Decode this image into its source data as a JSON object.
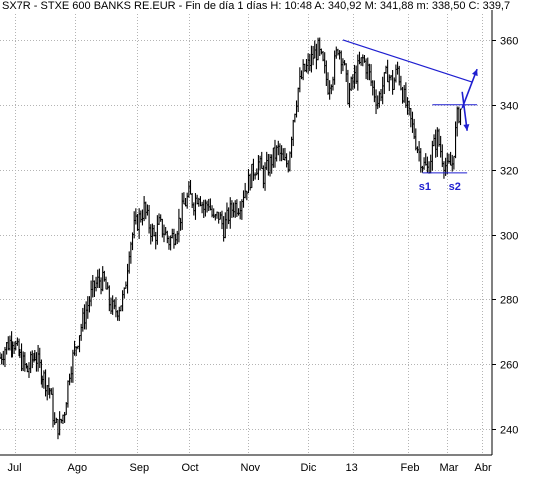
{
  "header": {
    "text": "SX7R - STXE 600 BANKS RE.EUR - Fin de día 1 días H: 10:48 A: 340,92 M: 341,88 m: 338,50 C: 339,7"
  },
  "chart_data": {
    "type": "candlestick",
    "title": "SX7R - STXE 600 BANKS RE.EUR",
    "x_tick_labels": [
      "Jul",
      "Ago",
      "Sep",
      "Oct",
      "Nov",
      "Dic",
      "13",
      "Feb",
      "Mar",
      "Abr"
    ],
    "y_ticks": [
      240,
      260,
      280,
      300,
      320,
      340,
      360
    ],
    "ylim": [
      232,
      368
    ],
    "grid": true,
    "axis_position": "right",
    "line_color": "#000000",
    "annotation_color": "#1f1fd0",
    "price_path": [
      [
        0,
        262
      ],
      [
        2,
        265
      ],
      [
        5,
        268
      ],
      [
        8,
        262
      ],
      [
        11,
        258
      ],
      [
        14,
        263
      ],
      [
        17,
        257
      ],
      [
        20,
        252
      ],
      [
        22,
        241
      ],
      [
        24,
        241
      ],
      [
        26,
        246
      ],
      [
        28,
        258
      ],
      [
        30,
        264
      ],
      [
        32,
        270
      ],
      [
        34,
        275
      ],
      [
        36,
        280
      ],
      [
        38,
        284
      ],
      [
        40,
        286
      ],
      [
        42,
        285
      ],
      [
        44,
        279
      ],
      [
        46,
        276
      ],
      [
        48,
        278
      ],
      [
        50,
        281
      ],
      [
        52,
        296
      ],
      [
        54,
        302
      ],
      [
        56,
        305
      ],
      [
        58,
        308
      ],
      [
        60,
        303
      ],
      [
        62,
        299
      ],
      [
        64,
        303
      ],
      [
        66,
        301
      ],
      [
        68,
        298
      ],
      [
        70,
        300
      ],
      [
        72,
        304
      ],
      [
        74,
        309
      ],
      [
        76,
        312
      ],
      [
        78,
        310
      ],
      [
        80,
        313
      ],
      [
        82,
        308
      ],
      [
        84,
        310
      ],
      [
        86,
        304
      ],
      [
        88,
        306
      ],
      [
        90,
        302
      ],
      [
        92,
        306
      ],
      [
        94,
        309
      ],
      [
        96,
        309
      ],
      [
        98,
        313
      ],
      [
        100,
        316
      ],
      [
        102,
        320
      ],
      [
        104,
        322
      ],
      [
        106,
        318
      ],
      [
        108,
        321
      ],
      [
        110,
        324
      ],
      [
        112,
        326
      ],
      [
        114,
        322
      ],
      [
        116,
        322
      ],
      [
        118,
        336
      ],
      [
        120,
        345
      ],
      [
        122,
        350
      ],
      [
        124,
        352
      ],
      [
        126,
        355
      ],
      [
        128,
        357
      ],
      [
        130,
        352
      ],
      [
        132,
        346
      ],
      [
        134,
        350
      ],
      [
        136,
        358
      ],
      [
        138,
        354
      ],
      [
        140,
        343
      ],
      [
        142,
        347
      ],
      [
        144,
        351
      ],
      [
        146,
        354
      ],
      [
        148,
        351
      ],
      [
        150,
        345
      ],
      [
        152,
        341
      ],
      [
        154,
        346
      ],
      [
        156,
        350
      ],
      [
        158,
        346
      ],
      [
        160,
        351
      ],
      [
        162,
        344
      ],
      [
        164,
        338
      ],
      [
        166,
        333
      ],
      [
        168,
        327
      ],
      [
        170,
        322
      ],
      [
        172,
        320
      ],
      [
        174,
        326
      ],
      [
        176,
        330
      ],
      [
        178,
        324
      ],
      [
        180,
        320
      ],
      [
        182,
        322
      ],
      [
        184,
        336
      ],
      [
        186,
        340
      ]
    ],
    "annotations": {
      "resistance_line": [
        [
          138,
          360
        ],
        [
          190,
          347
        ]
      ],
      "neckline": [
        [
          174,
          340
        ],
        [
          192,
          340
        ]
      ],
      "support_line": [
        [
          170,
          319
        ],
        [
          188,
          319
        ]
      ],
      "arrow_up": [
        [
          186,
          339
        ],
        [
          192,
          351
        ]
      ],
      "arrow_down": [
        [
          186,
          344
        ],
        [
          188,
          332
        ]
      ],
      "labels": [
        {
          "text": "s1",
          "x": 171,
          "y": 315
        },
        {
          "text": "s2",
          "x": 183,
          "y": 315
        }
      ]
    }
  }
}
